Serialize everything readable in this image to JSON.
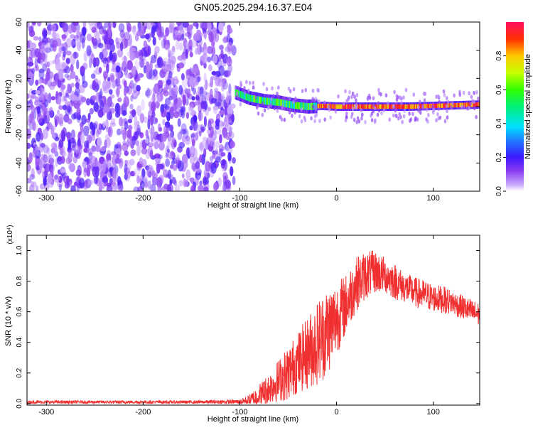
{
  "title": "GN05.2025.294.16.37.E04",
  "chart_data": [
    {
      "type": "heatmap",
      "title": "GN05.2025.294.16.37.E04",
      "xlabel": "Height of straight line (km)",
      "ylabel": "Frequency (Hz)",
      "xlim": [
        -320,
        148
      ],
      "ylim": [
        -60,
        60
      ],
      "x_ticks": [
        -300,
        -200,
        -100,
        0,
        100
      ],
      "y_ticks": [
        -60,
        -40,
        -20,
        0,
        20,
        40,
        60
      ],
      "noise_region": {
        "x_from": -320,
        "x_to": -106,
        "freq_from": -60,
        "freq_to": 60,
        "typical_amplitude": 0.15
      },
      "ridge": {
        "description": "dominant Doppler line",
        "x": [
          -105,
          -90,
          -75,
          -60,
          -45,
          -30,
          -15,
          0,
          25,
          50,
          75,
          100,
          125,
          148
        ],
        "freq": [
          10,
          6,
          4,
          3,
          1,
          0,
          0.5,
          0,
          0,
          0,
          0,
          0.5,
          1,
          1.5
        ],
        "peak_amplitude": 1.0
      },
      "colorbar": {
        "label": "Normalized spectral amplitude",
        "range": [
          0.0,
          1.0
        ],
        "ticks": [
          "0.0",
          "0.2",
          "0.4",
          "0.6",
          "0.8"
        ]
      },
      "grid": false
    },
    {
      "type": "line",
      "xlabel": "Height of straight line (km)",
      "ylabel": "SNR (10 * v/v)",
      "y_multiplier": "(x10⁴)",
      "xlim": [
        -320,
        148
      ],
      "ylim": [
        -0.01,
        1.1
      ],
      "x_ticks": [
        -300,
        -200,
        -100,
        0,
        100
      ],
      "y_ticks": [
        "0.0",
        "0.2",
        "0.4",
        "0.6",
        "0.8",
        "1.0"
      ],
      "series": [
        {
          "name": "SNR",
          "color": "#f03030",
          "x": [
            -320,
            -250,
            -200,
            -150,
            -100,
            -90,
            -80,
            -70,
            -60,
            -50,
            -40,
            -30,
            -20,
            -10,
            0,
            10,
            20,
            30,
            40,
            50,
            60,
            70,
            80,
            90,
            100,
            110,
            120,
            130,
            140,
            148
          ],
          "y_base": [
            0.01,
            0.01,
            0.01,
            0.01,
            0.012,
            0.02,
            0.05,
            0.1,
            0.15,
            0.2,
            0.27,
            0.33,
            0.4,
            0.47,
            0.56,
            0.65,
            0.78,
            0.84,
            0.86,
            0.84,
            0.8,
            0.76,
            0.73,
            0.71,
            0.69,
            0.68,
            0.66,
            0.63,
            0.6,
            0.58
          ],
          "y_spread": [
            0.01,
            0.01,
            0.01,
            0.01,
            0.015,
            0.04,
            0.08,
            0.1,
            0.14,
            0.18,
            0.2,
            0.24,
            0.28,
            0.3,
            0.24,
            0.2,
            0.18,
            0.16,
            0.14,
            0.12,
            0.12,
            0.1,
            0.1,
            0.1,
            0.09,
            0.09,
            0.08,
            0.08,
            0.08,
            0.08
          ]
        }
      ],
      "grid": false
    }
  ]
}
